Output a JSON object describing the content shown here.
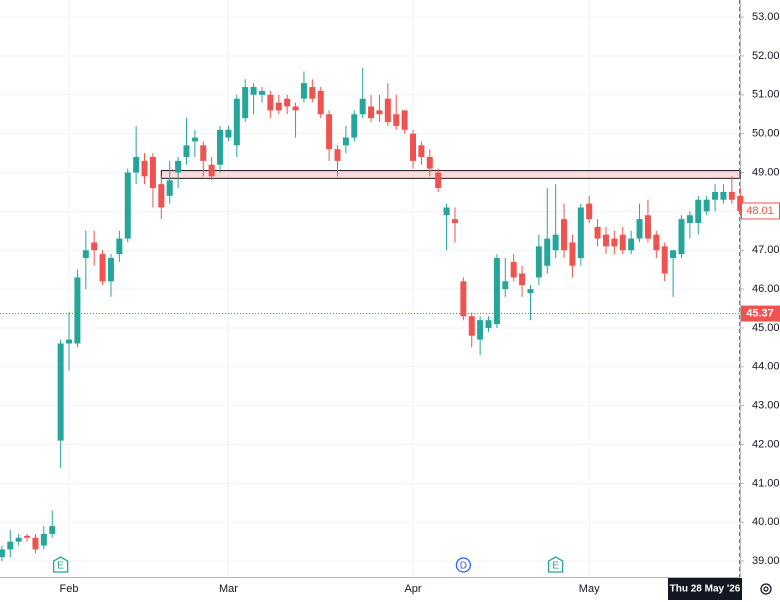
{
  "chart_data": {
    "type": "candlestick",
    "categories": [
      null,
      null,
      null,
      null,
      null,
      null,
      null,
      null,
      "Feb",
      null,
      null,
      null,
      null,
      null,
      null,
      null,
      null,
      null,
      null,
      null,
      null,
      null,
      null,
      null,
      null,
      null,
      null,
      "Mar",
      null,
      null,
      null,
      null,
      null,
      null,
      null,
      null,
      null,
      null,
      null,
      null,
      null,
      null,
      null,
      null,
      null,
      null,
      null,
      null,
      null,
      "Apr",
      null,
      null,
      null,
      null,
      null,
      null,
      null,
      null,
      null,
      null,
      null,
      null,
      null,
      null,
      null,
      null,
      null,
      null,
      null,
      null,
      "May",
      null,
      null,
      null,
      null,
      null,
      null,
      null,
      null,
      null,
      null,
      null,
      null,
      null,
      null,
      null,
      null,
      null,
      null
    ],
    "open": [
      39.1,
      39.3,
      39.5,
      39.65,
      39.6,
      39.4,
      39.7,
      42.1,
      44.6,
      44.6,
      46.8,
      47.2,
      46.9,
      46.2,
      46.9,
      47.3,
      49.0,
      49.3,
      49.4,
      48.7,
      48.4,
      49.0,
      49.4,
      49.8,
      49.7,
      49.2,
      49.2,
      49.9,
      49.7,
      50.4,
      51.0,
      51.0,
      51.0,
      50.8,
      50.9,
      50.7,
      50.9,
      51.2,
      51.1,
      50.5,
      49.6,
      49.7,
      49.9,
      50.5,
      50.7,
      50.6,
      50.9,
      50.5,
      50.6,
      50.0,
      49.7,
      49.4,
      49.0,
      47.9,
      47.8,
      46.2,
      45.3,
      44.7,
      45.0,
      45.1,
      46.0,
      46.7,
      46.4,
      45.9,
      46.3,
      46.6,
      47.0,
      47.8,
      47.2,
      46.8,
      48.2,
      47.6,
      47.4,
      47.3,
      47.4,
      47.0,
      47.3,
      47.9,
      47.4,
      47.1,
      46.8,
      46.9,
      47.7,
      47.7,
      48.0,
      48.3,
      48.3,
      48.5,
      48.4
    ],
    "high": [
      39.4,
      39.8,
      39.7,
      39.7,
      39.7,
      39.9,
      40.3,
      44.7,
      45.4,
      46.5,
      47.5,
      47.5,
      47.0,
      46.9,
      47.5,
      49.1,
      50.2,
      49.5,
      49.5,
      48.9,
      49.3,
      49.4,
      50.4,
      50.1,
      49.8,
      49.4,
      50.2,
      50.2,
      51.0,
      51.4,
      51.3,
      51.2,
      51.1,
      51.0,
      51.0,
      50.8,
      51.6,
      51.4,
      51.2,
      50.6,
      49.7,
      50.2,
      50.6,
      51.7,
      51.0,
      51.0,
      51.3,
      51.0,
      50.6,
      50.1,
      49.8,
      49.6,
      49.1,
      48.2,
      48.1,
      46.3,
      45.4,
      45.3,
      45.3,
      46.9,
      46.8,
      46.9,
      46.6,
      46.1,
      47.4,
      48.6,
      48.7,
      48.2,
      47.4,
      48.2,
      48.4,
      47.8,
      47.6,
      47.5,
      47.6,
      47.5,
      48.2,
      48.3,
      47.5,
      47.2,
      47.0,
      47.9,
      48.0,
      48.4,
      48.4,
      48.7,
      48.7,
      48.9,
      48.6
    ],
    "low": [
      39.0,
      39.1,
      39.4,
      39.5,
      39.2,
      39.3,
      39.6,
      41.4,
      43.9,
      44.5,
      46.0,
      46.6,
      46.1,
      45.8,
      46.7,
      47.2,
      48.7,
      48.7,
      48.1,
      47.8,
      48.2,
      48.6,
      49.2,
      49.4,
      48.9,
      48.8,
      49.0,
      49.8,
      49.4,
      50.3,
      50.5,
      50.8,
      50.4,
      50.5,
      50.5,
      49.9,
      50.8,
      50.8,
      50.4,
      49.3,
      48.9,
      49.5,
      49.8,
      50.4,
      50.3,
      50.3,
      50.2,
      50.1,
      50.0,
      49.1,
      49.2,
      48.9,
      48.5,
      47.0,
      47.2,
      45.2,
      44.5,
      44.3,
      44.9,
      45.0,
      45.8,
      46.2,
      45.8,
      45.2,
      46.1,
      46.4,
      46.8,
      46.8,
      46.3,
      46.6,
      47.7,
      47.1,
      46.9,
      46.9,
      46.9,
      46.9,
      47.2,
      47.2,
      46.8,
      46.2,
      45.8,
      46.8,
      47.3,
      47.4,
      47.9,
      48.0,
      48.2,
      48.2,
      47.9
    ],
    "close": [
      39.3,
      39.5,
      39.6,
      39.6,
      39.3,
      39.7,
      39.9,
      44.6,
      44.7,
      46.3,
      47.0,
      47.0,
      46.2,
      46.8,
      47.3,
      49.0,
      49.4,
      48.9,
      48.6,
      48.1,
      48.8,
      49.3,
      49.7,
      49.9,
      49.3,
      48.9,
      50.1,
      50.1,
      50.9,
      51.2,
      51.2,
      51.1,
      50.6,
      50.6,
      50.7,
      50.6,
      51.3,
      50.9,
      50.5,
      49.6,
      49.3,
      49.9,
      50.5,
      50.9,
      50.4,
      50.5,
      50.3,
      50.2,
      50.1,
      49.3,
      49.4,
      49.1,
      48.6,
      48.1,
      47.7,
      45.3,
      44.8,
      45.2,
      45.2,
      46.8,
      46.2,
      46.3,
      46.1,
      46.0,
      47.1,
      47.3,
      47.4,
      47.0,
      46.6,
      48.1,
      47.8,
      47.3,
      47.1,
      47.1,
      47.0,
      47.3,
      47.8,
      47.3,
      47.0,
      46.4,
      47.0,
      47.8,
      47.9,
      48.3,
      48.3,
      48.5,
      48.5,
      48.3,
      48.01
    ],
    "up_color": "#26a69a",
    "down_color": "#ef5350",
    "ylim": [
      38.59,
      53.44
    ],
    "yticks": [
      {
        "value": 39,
        "label": "39.00"
      },
      {
        "value": 40,
        "label": "40.00"
      },
      {
        "value": 41,
        "label": "41.00"
      },
      {
        "value": 42,
        "label": "42.00"
      },
      {
        "value": 43,
        "label": "43.00"
      },
      {
        "value": 44,
        "label": "44.00"
      },
      {
        "value": 45,
        "label": "45.00"
      },
      {
        "value": 46,
        "label": "46.00"
      },
      {
        "value": 47,
        "label": "47.00"
      },
      {
        "value": 48,
        "label": "48.00"
      },
      {
        "value": 49,
        "label": "49.00"
      },
      {
        "value": 50,
        "label": "50.00"
      },
      {
        "value": 51,
        "label": "51.00"
      },
      {
        "value": 52,
        "label": "52.00"
      },
      {
        "value": 53,
        "label": "53.00"
      }
    ],
    "grid": true,
    "price_line": {
      "value": 45.37,
      "label": "45.37"
    },
    "last_price": {
      "value": 48.01,
      "label": "48.01"
    },
    "zone": {
      "top": 49.05,
      "bottom": 48.85,
      "start_index": 19
    },
    "events": [
      {
        "index": 7,
        "label": "E"
      },
      {
        "index": 55,
        "label": "D"
      },
      {
        "index": 66,
        "label": "E"
      }
    ],
    "crosshair_label": "Thu 28 May '26"
  }
}
